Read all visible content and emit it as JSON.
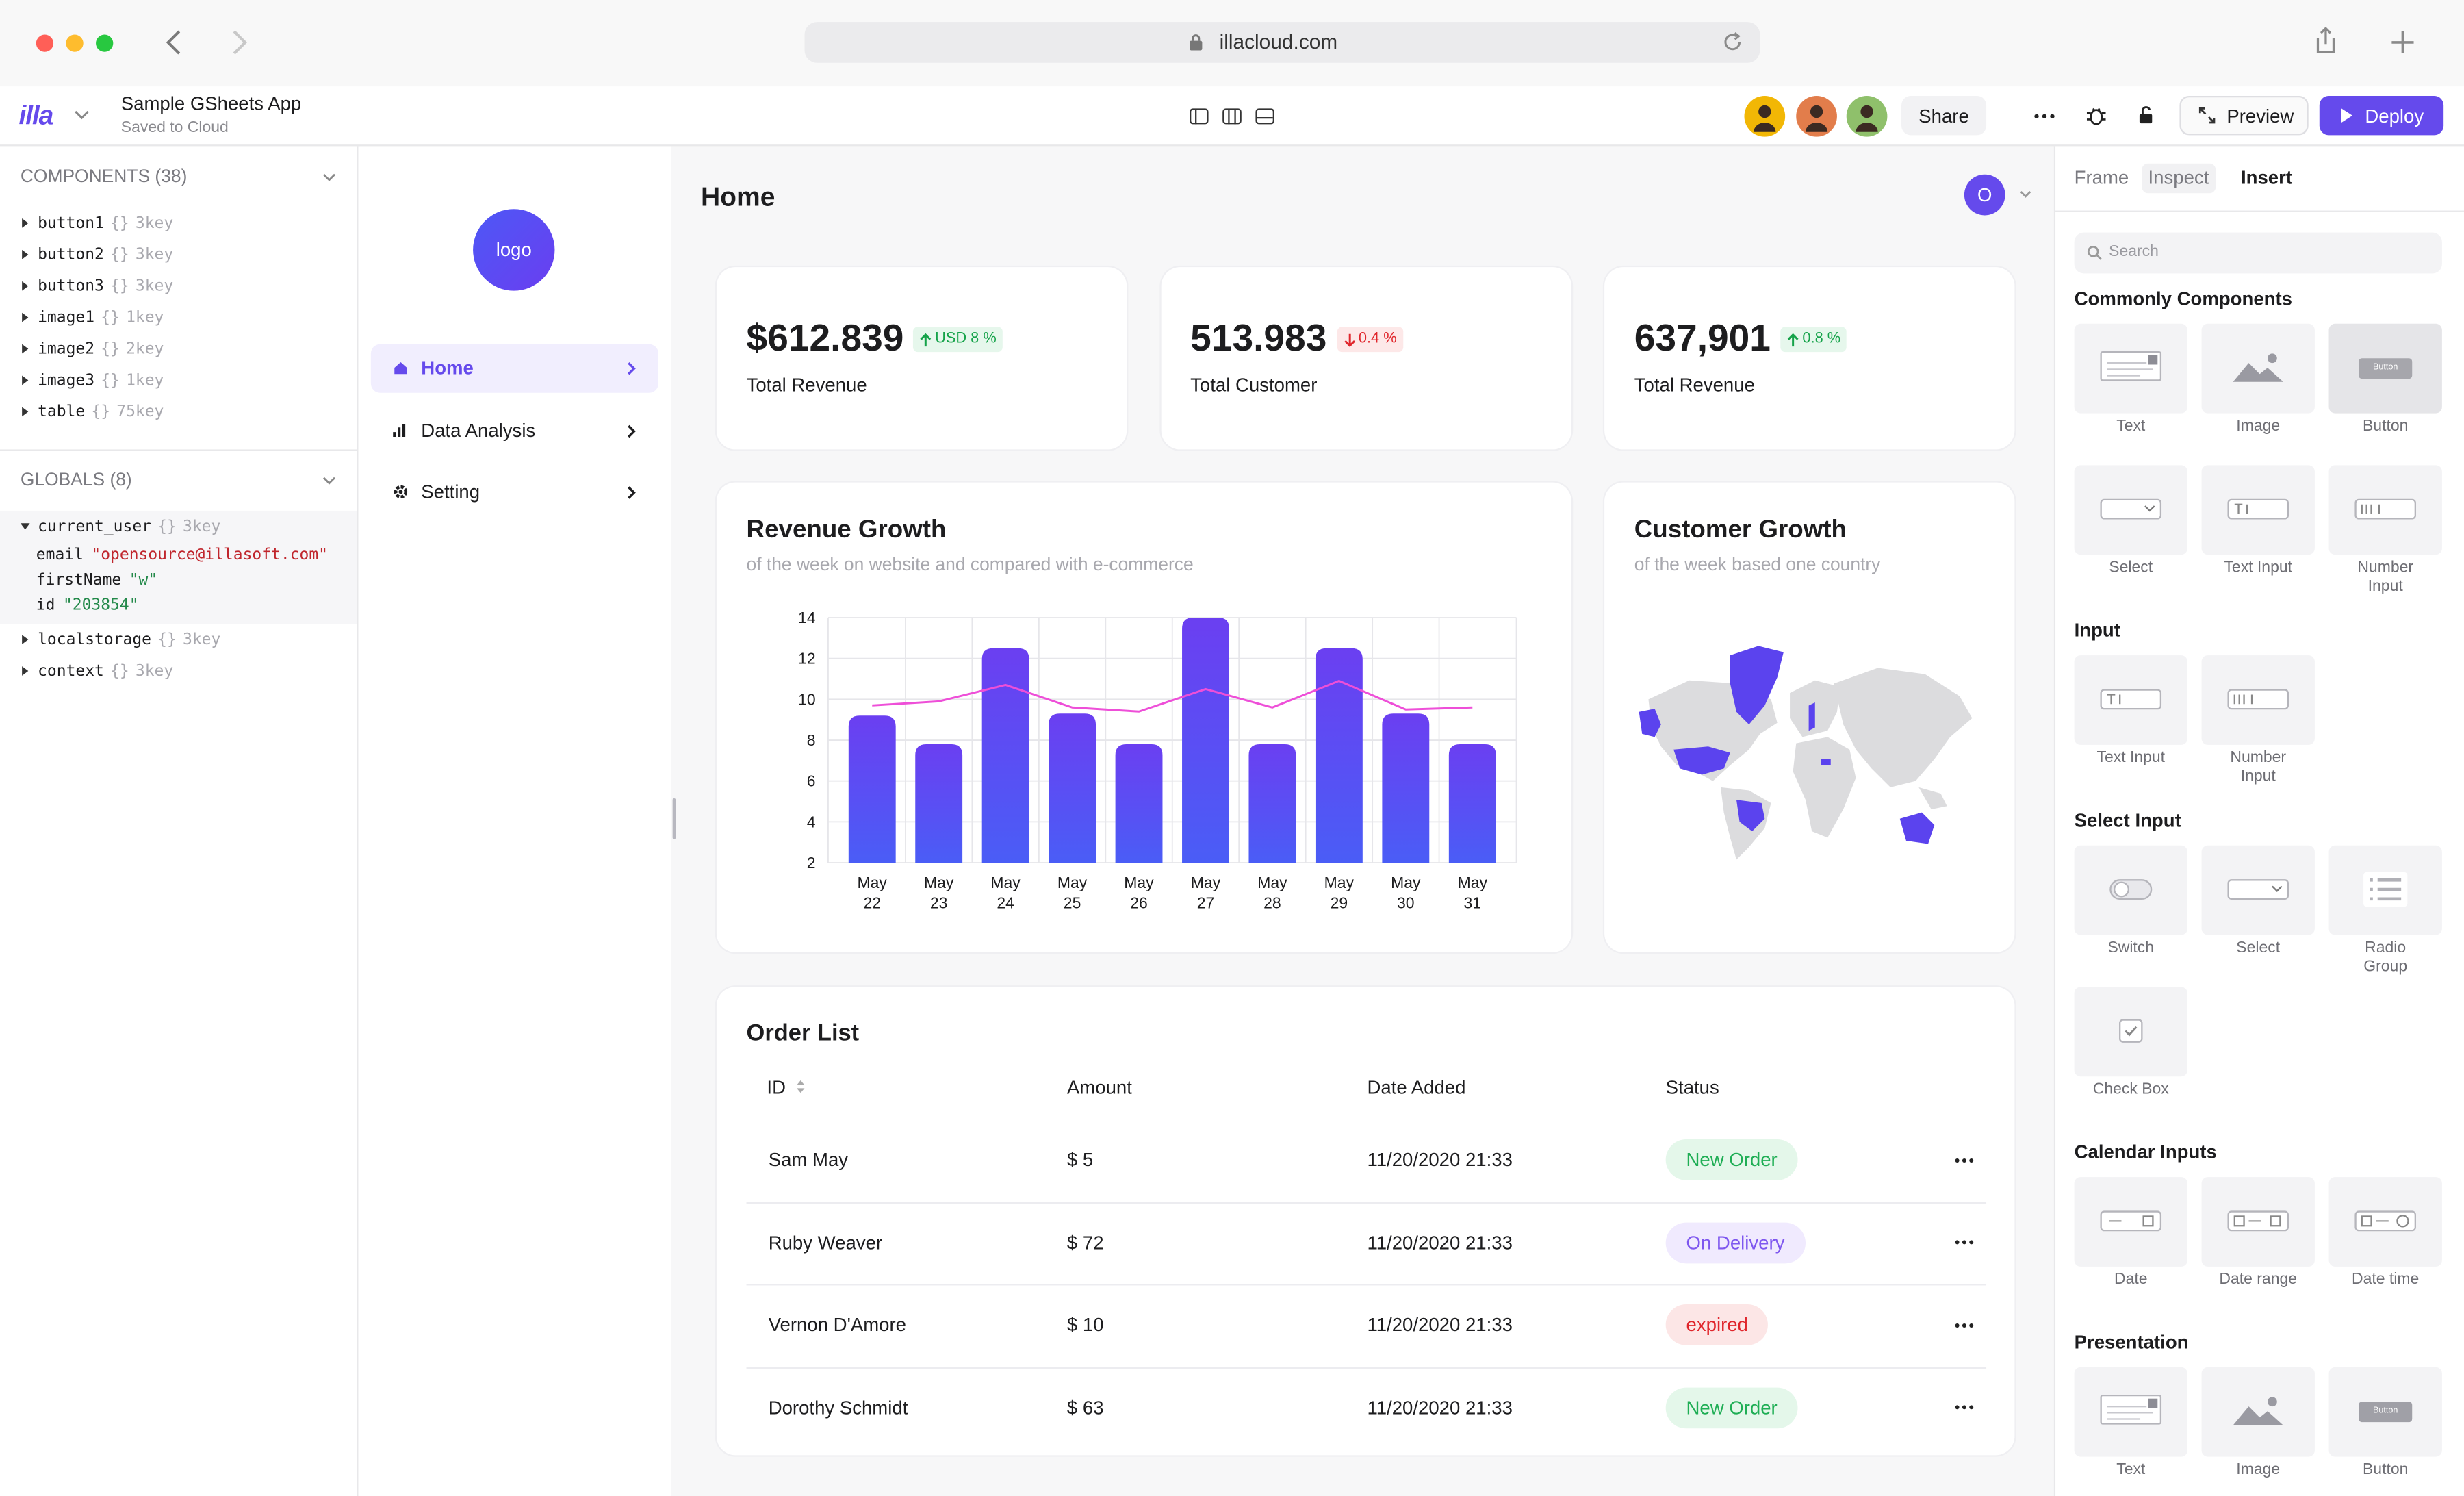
{
  "browser": {
    "url": "illacloud.com"
  },
  "toolbar": {
    "logo_text": "illa",
    "app_name": "Sample GSheets App",
    "save_status": "Saved to Cloud",
    "share": "Share",
    "preview": "Preview",
    "deploy": "Deploy"
  },
  "components": {
    "title": "COMPONENTS (38)",
    "items": [
      {
        "name": "button1",
        "type": "{}",
        "keys": "3key"
      },
      {
        "name": "button2",
        "type": "{}",
        "keys": "3key"
      },
      {
        "name": "button3",
        "type": "{}",
        "keys": "3key"
      },
      {
        "name": "image1",
        "type": "{}",
        "keys": "1key"
      },
      {
        "name": "image2",
        "type": "{}",
        "keys": "2key"
      },
      {
        "name": "image3",
        "type": "{}",
        "keys": "1key"
      },
      {
        "name": "table",
        "type": "{}",
        "keys": "75key"
      }
    ]
  },
  "globals": {
    "title": "GLOBALS (8)",
    "items": [
      {
        "name": "current_user",
        "type": "{}",
        "keys": "3key",
        "expanded": true,
        "fields": [
          {
            "key": "email",
            "value": "\"opensource@illasoft.com\"",
            "color": "#c0262d"
          },
          {
            "key": "firstName",
            "value": "\"w\"",
            "color": "#23894a"
          },
          {
            "key": "id",
            "value": "\"203854\"",
            "color": "#23894a"
          }
        ]
      },
      {
        "name": "localstorage",
        "type": "{}",
        "keys": "3key"
      },
      {
        "name": "context",
        "type": "{}",
        "keys": "3key"
      }
    ]
  },
  "nav": {
    "logo": "logo",
    "items": [
      {
        "label": "Home",
        "icon": "home",
        "active": true
      },
      {
        "label": "Data Analysis",
        "icon": "chart"
      },
      {
        "label": "Setting",
        "icon": "gear"
      }
    ]
  },
  "page": {
    "title": "Home",
    "avatar": "O"
  },
  "stats": [
    {
      "value": "$612.839",
      "change": "USD 8 %",
      "trend": "up",
      "label": "Total Revenue"
    },
    {
      "value": "513.983",
      "change": "0.4 %",
      "trend": "down",
      "label": "Total Customer"
    },
    {
      "value": "637,901",
      "change": "0.8 %",
      "trend": "up",
      "label": "Total Revenue"
    }
  ],
  "chart_data": {
    "type": "bar",
    "title": "Revenue Growth",
    "subtitle": "of the week on website and compared with e-commerce",
    "categories": [
      "May 22",
      "May 23",
      "May 24",
      "May 25",
      "May 26",
      "May 27",
      "May 28",
      "May 29",
      "May 30",
      "May 31"
    ],
    "series": [
      {
        "type": "bar",
        "gradient": [
          "#6b3ff1",
          "#4a5df6"
        ],
        "values": [
          9.2,
          7.8,
          12.5,
          9.3,
          7.8,
          14,
          7.8,
          12.5,
          9.3,
          7.8
        ]
      },
      {
        "type": "line",
        "color": "#ee4fd8",
        "values": [
          9.7,
          9.9,
          10.7,
          9.6,
          9.4,
          10.5,
          9.6,
          10.9,
          9.5,
          9.6
        ]
      }
    ],
    "ylim": [
      2,
      14
    ],
    "yticks": [
      2,
      4,
      6,
      8,
      10,
      12,
      14
    ],
    "grid": true
  },
  "map_card": {
    "title": "Customer Growth",
    "subtitle": "of the week based one country"
  },
  "orders": {
    "title": "Order List",
    "columns": [
      "ID",
      "Amount",
      "Date Added",
      "Status"
    ],
    "rows": [
      {
        "cells": [
          "Sam May",
          "$ 5",
          "11/20/2020 21:33",
          "New Order"
        ],
        "status_color": "#1fae55",
        "status_bg": "#e4f7ea"
      },
      {
        "cells": [
          "Ruby Weaver",
          "$ 72",
          "11/20/2020 21:33",
          "On Delivery"
        ],
        "status_color": "#7e57ef",
        "status_bg": "#f0eafe"
      },
      {
        "cells": [
          "Vernon D'Amore",
          "$ 10",
          "11/20/2020 21:33",
          "expired"
        ],
        "status_color": "#e0262c",
        "status_bg": "#fce6e6"
      },
      {
        "cells": [
          "Dorothy Schmidt",
          "$ 63",
          "11/20/2020 21:33",
          "New Order"
        ],
        "status_color": "#1fae55",
        "status_bg": "#e4f7ea"
      }
    ]
  },
  "inspector": {
    "tabs": [
      "Frame",
      "Inspect",
      "Insert"
    ],
    "active_tab": 2,
    "hover_tab": 1,
    "search": "Search",
    "groups": [
      {
        "title": "Commonly Components",
        "items": [
          {
            "label": "Text",
            "icon": "text"
          },
          {
            "label": "Image",
            "icon": "image"
          },
          {
            "label": "Button",
            "icon": "button",
            "highlighted": true
          },
          {
            "label": "Select",
            "icon": "select"
          },
          {
            "label": "Text Input",
            "icon": "textinput"
          },
          {
            "label": "Number Input",
            "icon": "number"
          }
        ]
      },
      {
        "title": "Input",
        "items": [
          {
            "label": "Text Input",
            "icon": "textinput"
          },
          {
            "label": "Number Input",
            "icon": "number"
          }
        ]
      },
      {
        "title": "Select Input",
        "items": [
          {
            "label": "Switch",
            "icon": "switch"
          },
          {
            "label": "Select",
            "icon": "select"
          },
          {
            "label": "Radio Group",
            "icon": "radio"
          },
          {
            "label": "Check Box",
            "icon": "checkbox"
          }
        ]
      },
      {
        "title": "Calendar Inputs",
        "items": [
          {
            "label": "Date",
            "icon": "date"
          },
          {
            "label": "Date range",
            "icon": "daterange"
          },
          {
            "label": "Date time",
            "icon": "datetime"
          }
        ]
      },
      {
        "title": "Presentation",
        "items": [
          {
            "label": "Text",
            "icon": "text"
          },
          {
            "label": "Image",
            "icon": "image"
          },
          {
            "label": "Button",
            "icon": "button"
          }
        ]
      }
    ]
  }
}
